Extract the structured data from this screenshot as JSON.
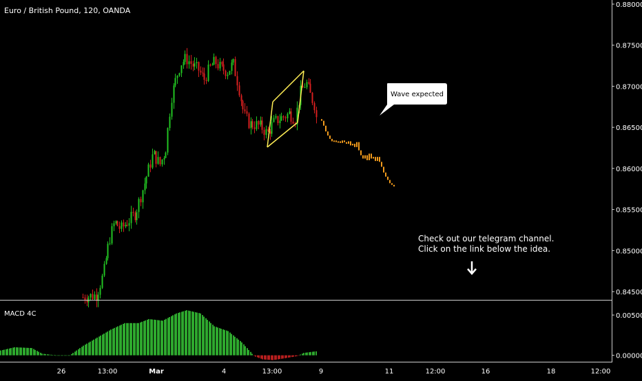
{
  "chart_data": [
    {
      "type": "candlestick",
      "title": "Euro / British Pound, 120, OANDA",
      "ylim": [
        0.844,
        0.8805
      ],
      "y_ticks": [
        "0.88000",
        "0.87500",
        "0.87000",
        "0.86500",
        "0.86000",
        "0.85500",
        "0.85000",
        "0.84500"
      ],
      "x_ticks": [
        "26",
        "13:00",
        "Mar",
        "4",
        "13:00",
        "9",
        "13:00",
        "11",
        "12:00",
        "16",
        "18",
        "12:00"
      ],
      "colors": {
        "up": "#22c322",
        "down": "#d61f1f",
        "projection": "#f09a1c",
        "pattern": "#ffee55"
      },
      "projection": {
        "start_close": 0.866,
        "closes": [
          0.8658,
          0.8652,
          0.8645,
          0.864,
          0.8636,
          0.8633,
          0.8634,
          0.8632,
          0.8633,
          0.8631,
          0.8634,
          0.8632,
          0.863,
          0.8633,
          0.8628,
          0.863,
          0.8626,
          0.8632,
          0.8622,
          0.8616,
          0.8612,
          0.8616,
          0.861,
          0.8618,
          0.8612,
          0.8614,
          0.8609,
          0.8614,
          0.8608,
          0.8602,
          0.8595,
          0.859,
          0.8586,
          0.8582,
          0.858,
          0.8578
        ]
      },
      "annotations": {
        "callout": "Wave expected",
        "message_line1": "Check out our telegram channel.",
        "message_line2": "Click on the link below the idea."
      }
    },
    {
      "type": "histogram",
      "title": "MACD 4C",
      "ylim": [
        -0.0008,
        0.0068
      ],
      "y_ticks": [
        "0.00500",
        "0.00000"
      ],
      "colors": {
        "positive": "#2ea82e",
        "negative": "#b51e1e"
      }
    }
  ]
}
